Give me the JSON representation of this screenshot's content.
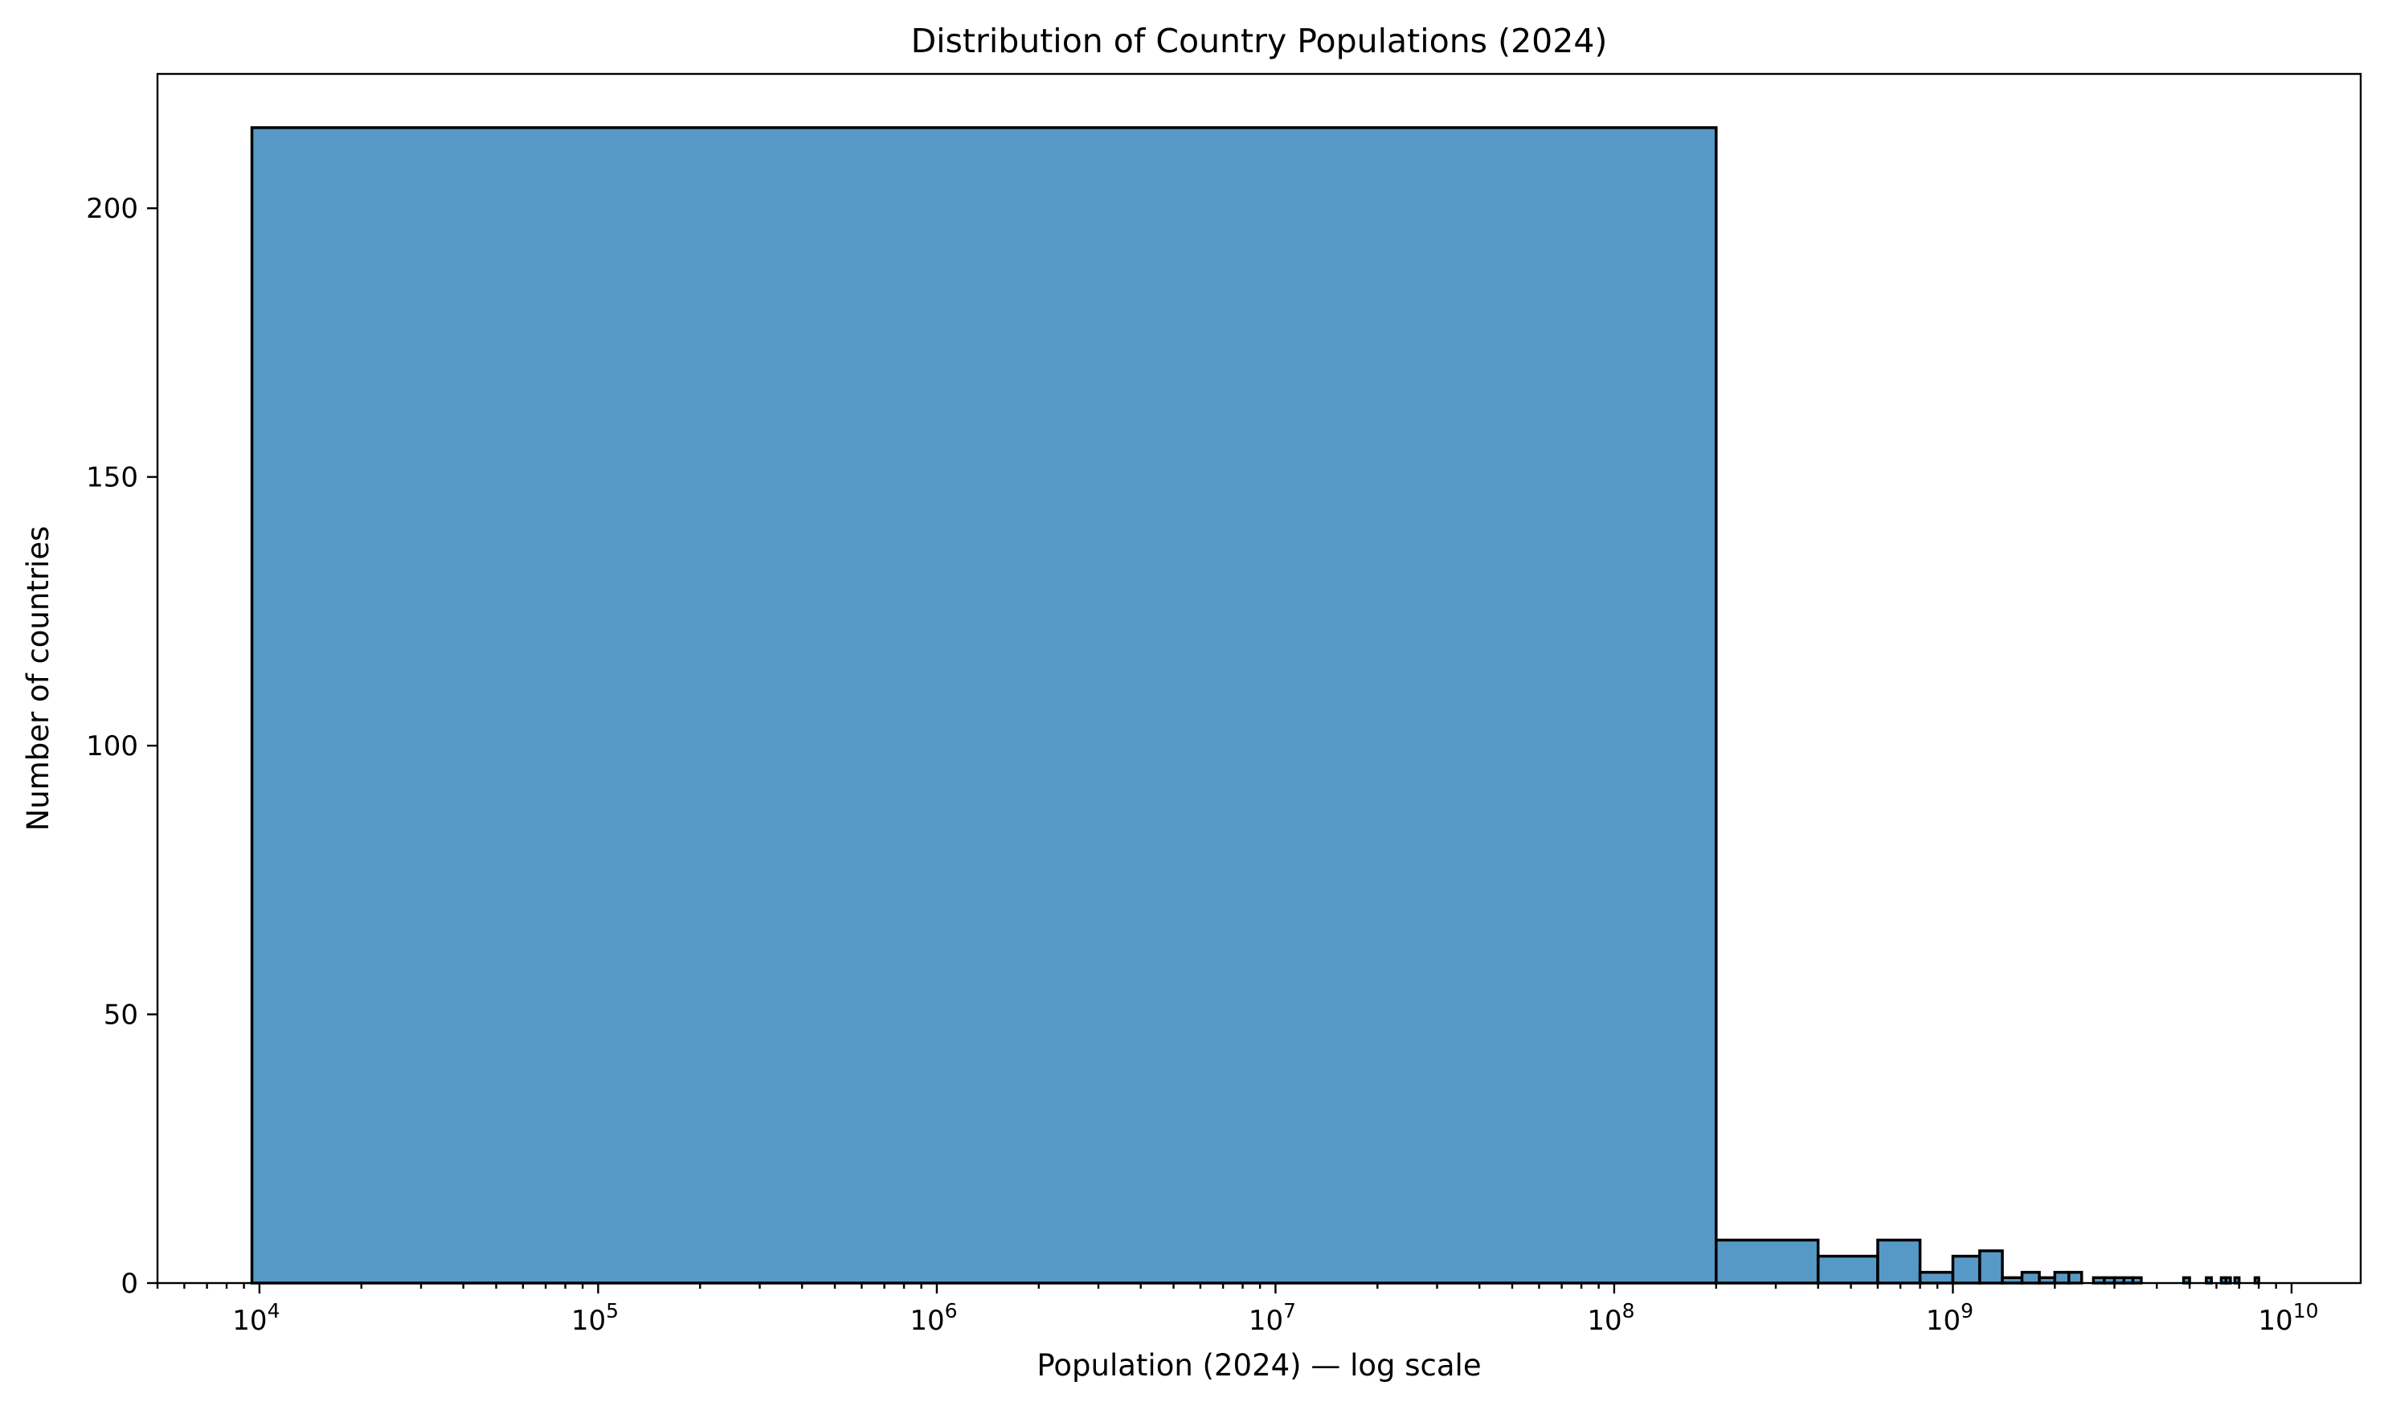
{
  "chart_data": {
    "type": "bar",
    "subtype": "histogram",
    "title": "Distribution of Country Populations (2024)",
    "xlabel": "Population (2024) — log scale",
    "ylabel": "Number of countries",
    "xscale": "log",
    "xlim": [
      5000,
      16000000000
    ],
    "ylim": [
      0,
      225
    ],
    "xticks": [
      {
        "value": 10000,
        "base": "10",
        "exp": "4"
      },
      {
        "value": 100000,
        "base": "10",
        "exp": "5"
      },
      {
        "value": 1000000,
        "base": "10",
        "exp": "6"
      },
      {
        "value": 10000000,
        "base": "10",
        "exp": "7"
      },
      {
        "value": 100000000,
        "base": "10",
        "exp": "8"
      },
      {
        "value": 1000000000,
        "base": "10",
        "exp": "9"
      },
      {
        "value": 10000000000,
        "base": "10",
        "exp": "10"
      }
    ],
    "yticks": [
      {
        "value": 0,
        "label": "0"
      },
      {
        "value": 50,
        "label": "50"
      },
      {
        "value": 100,
        "label": "100"
      },
      {
        "value": 150,
        "label": "150"
      },
      {
        "value": 200,
        "label": "200"
      }
    ],
    "grid": false,
    "bar_color": "#5699c6",
    "edge_color": "#000000",
    "bins": [
      {
        "x0": 9500,
        "x1": 200000000,
        "count": 215
      },
      {
        "x0": 200000000,
        "x1": 400000000,
        "count": 8
      },
      {
        "x0": 400000000,
        "x1": 600000000,
        "count": 5
      },
      {
        "x0": 600000000,
        "x1": 800000000,
        "count": 8
      },
      {
        "x0": 800000000,
        "x1": 1000000000,
        "count": 2
      },
      {
        "x0": 1000000000,
        "x1": 1200000000,
        "count": 5
      },
      {
        "x0": 1200000000,
        "x1": 1400000000,
        "count": 6
      },
      {
        "x0": 1400000000,
        "x1": 1600000000,
        "count": 1
      },
      {
        "x0": 1600000000,
        "x1": 1800000000,
        "count": 2
      },
      {
        "x0": 1800000000,
        "x1": 2000000000,
        "count": 1
      },
      {
        "x0": 2000000000,
        "x1": 2200000000,
        "count": 2
      },
      {
        "x0": 2200000000,
        "x1": 2400000000,
        "count": 2
      },
      {
        "x0": 2600000000,
        "x1": 2800000000,
        "count": 1
      },
      {
        "x0": 2800000000,
        "x1": 3000000000,
        "count": 1
      },
      {
        "x0": 3000000000,
        "x1": 3200000000,
        "count": 1
      },
      {
        "x0": 3200000000,
        "x1": 3400000000,
        "count": 1
      },
      {
        "x0": 3400000000,
        "x1": 3600000000,
        "count": 1
      },
      {
        "x0": 4800000000,
        "x1": 5000000000,
        "count": 1
      },
      {
        "x0": 5600000000,
        "x1": 5800000000,
        "count": 1
      },
      {
        "x0": 6200000000,
        "x1": 6400000000,
        "count": 1
      },
      {
        "x0": 6400000000,
        "x1": 6600000000,
        "count": 1
      },
      {
        "x0": 6800000000,
        "x1": 7000000000,
        "count": 1
      },
      {
        "x0": 7800000000,
        "x1": 8000000000,
        "count": 1
      }
    ]
  }
}
